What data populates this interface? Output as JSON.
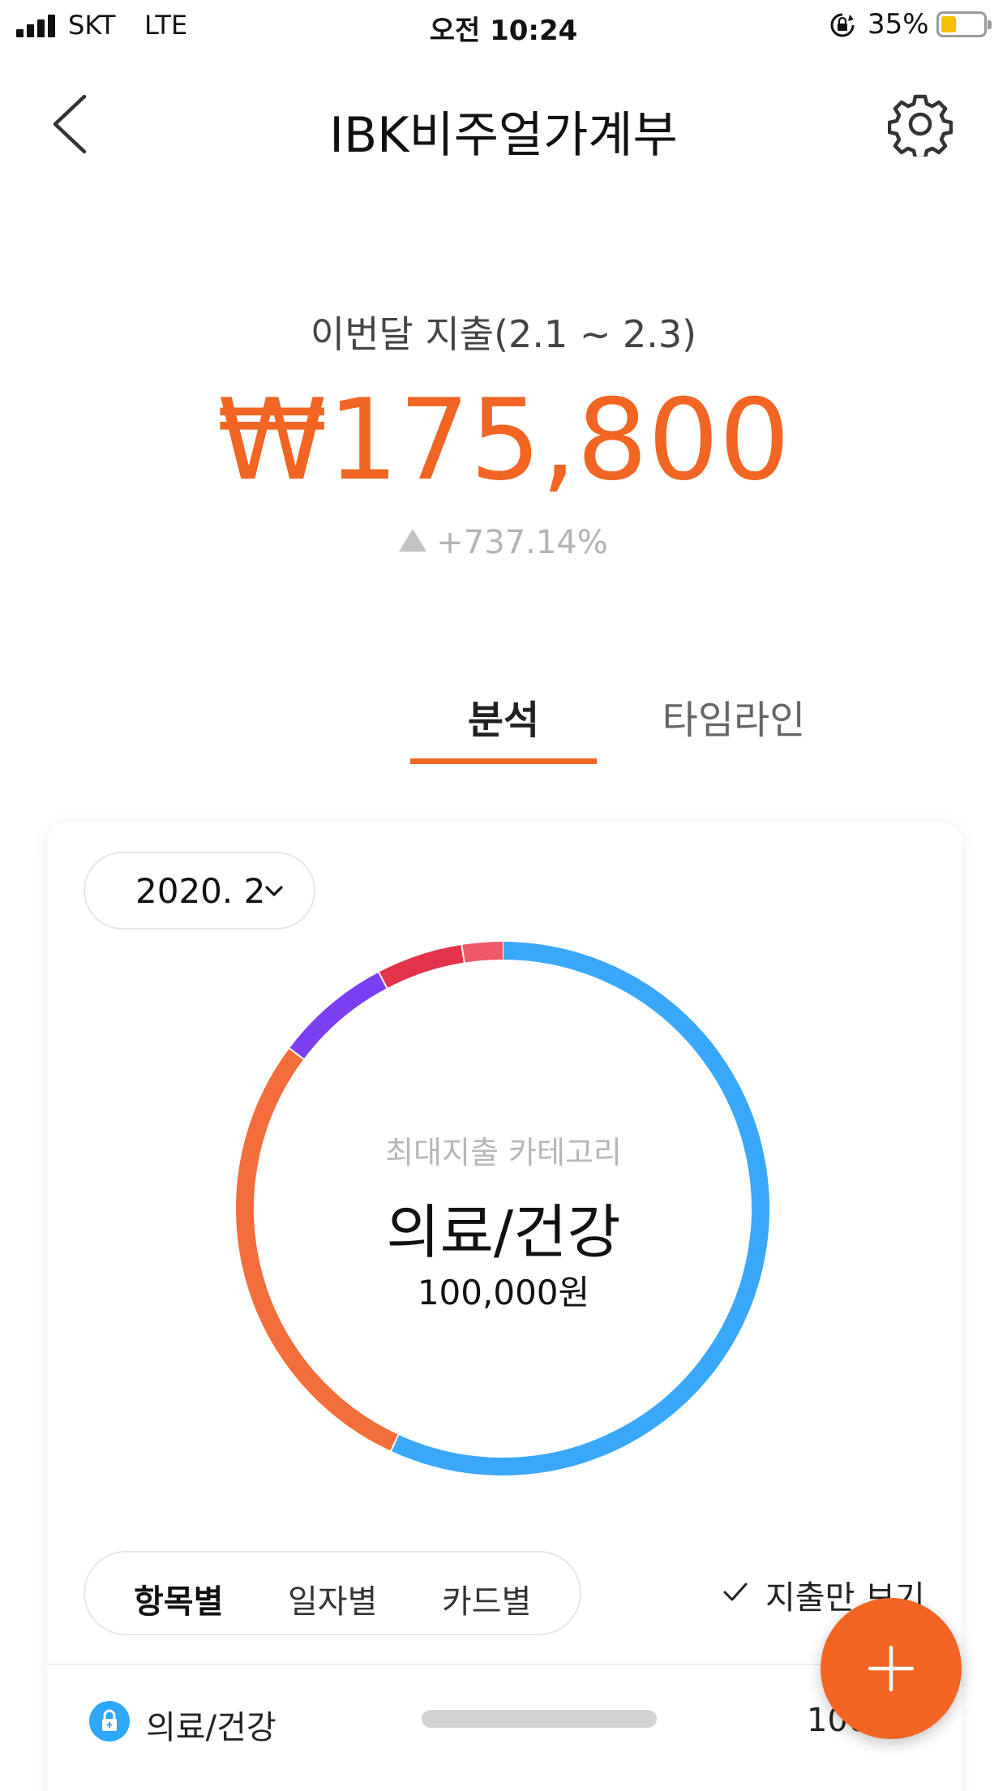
{
  "status_bar": {
    "carrier": "SKT",
    "network": "LTE",
    "time": "오전 10:24",
    "battery_percent": "35%",
    "battery_level": 0.35,
    "battery_color": "#f5c000"
  },
  "nav": {
    "title": "IBK비주얼가계부",
    "back_icon": "chevron-left-icon",
    "settings_icon": "gear-icon"
  },
  "summary": {
    "label": "이번달 지출(2.1 ~ 2.3)",
    "amount": "₩175,800",
    "change": "+737.14%",
    "accent_color": "#f26522"
  },
  "tabs": [
    {
      "label": "분석",
      "active": true
    },
    {
      "label": "타임라인",
      "active": false
    }
  ],
  "card": {
    "month": "2020. 2",
    "donut": {
      "caption": "최대지출 카테고리",
      "top_category": "의료/건강",
      "top_value": "100,000원",
      "segments": [
        {
          "color": "#3aa8fa",
          "fraction": 0.5688
        },
        {
          "color": "#f36e3a",
          "fraction": 0.2837
        },
        {
          "color": "#7b3ff2",
          "fraction": 0.0706
        },
        {
          "color": "#e2334a",
          "fraction": 0.0523
        },
        {
          "color": "#f0596a",
          "fraction": 0.0246
        }
      ]
    },
    "segmented": [
      "항목별",
      "일자별",
      "카드별"
    ],
    "spend_only": "지출만 보기",
    "list": [
      {
        "label": "의료/건강",
        "amount": "100,",
        "icon": "lock-icon",
        "icon_color": "#2ea7ff"
      }
    ]
  },
  "fab_icon": "plus-icon"
}
